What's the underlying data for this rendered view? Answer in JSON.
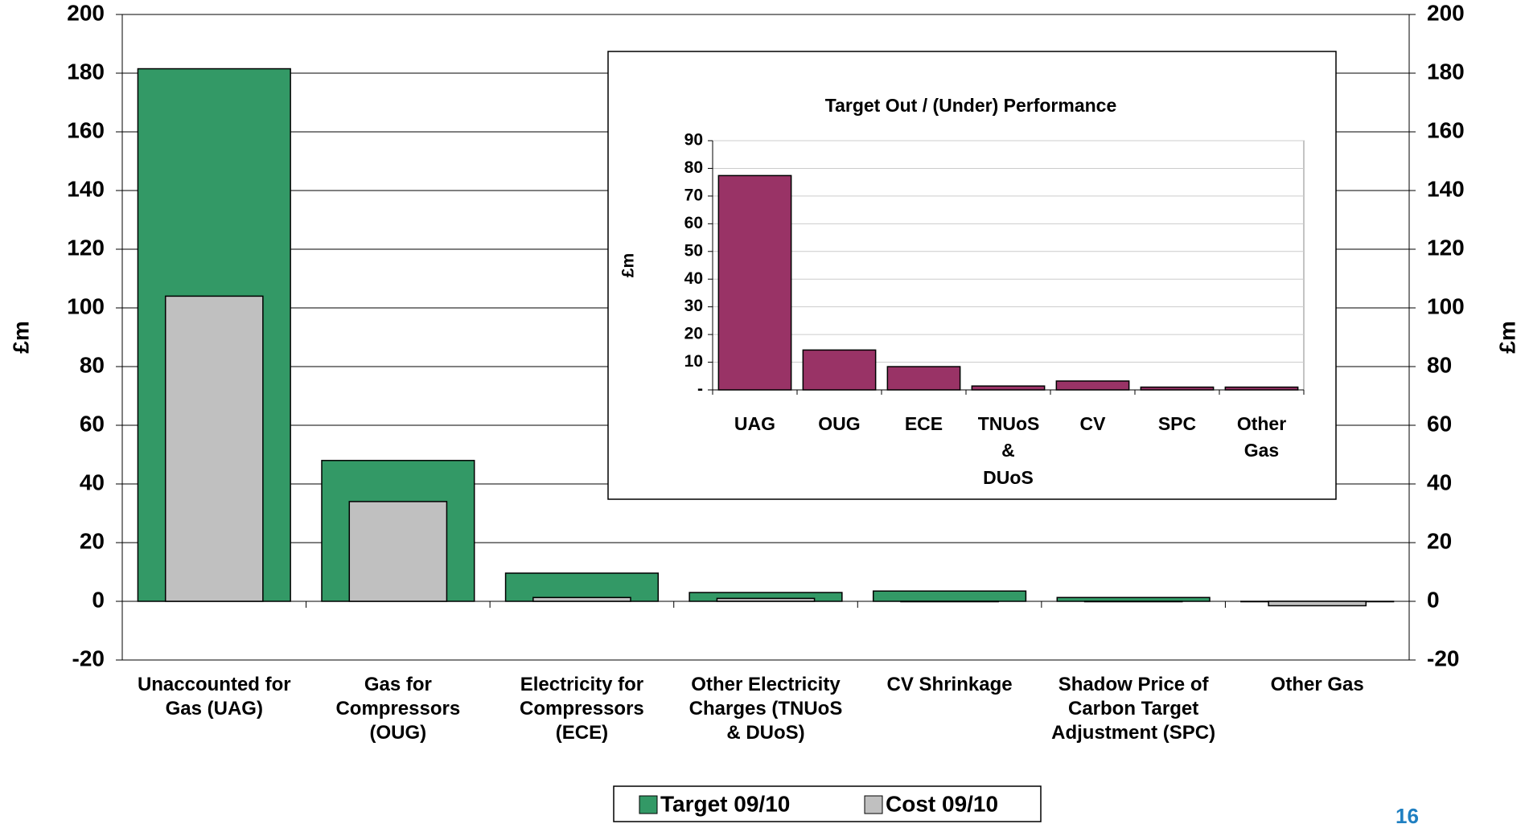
{
  "chart_data": [
    {
      "type": "bar",
      "categories": [
        "Unaccounted for Gas (UAG)",
        "Gas for Compressors (OUG)",
        "Electricity for Compressors (ECE)",
        "Other Electricity Charges (TNUoS & DUoS)",
        "CV Shrinkage",
        "Shadow Price of Carbon Target Adjustment (SPC)",
        "Other Gas"
      ],
      "series": [
        {
          "name": "Target 09/10",
          "color": "#339966",
          "values": [
            181.5,
            48,
            9.6,
            3,
            3.5,
            1.3,
            0
          ]
        },
        {
          "name": "Cost 09/10",
          "color": "#c0c0c0",
          "values": [
            104,
            34,
            1.3,
            1,
            0,
            0,
            -1.5
          ]
        }
      ],
      "y_label": "£m",
      "y2_label": "£m",
      "ylim": [
        -20,
        200
      ],
      "yticks": [
        -20,
        0,
        20,
        40,
        60,
        80,
        100,
        120,
        140,
        160,
        180,
        200
      ],
      "y2lim": [
        -20,
        200
      ],
      "y2ticks": [
        -20,
        0,
        20,
        40,
        60,
        80,
        100,
        120,
        140,
        160,
        180,
        200
      ],
      "grid": true,
      "legend": "bottom"
    },
    {
      "type": "bar",
      "title": "Target Out / (Under) Performance",
      "categories": [
        "UAG",
        "OUG",
        "ECE",
        "TNUoS & DUoS",
        "CV",
        "SPC",
        "Other Gas"
      ],
      "values": [
        77.4,
        14.4,
        8.4,
        1.4,
        3.2,
        1,
        1
      ],
      "color": "#993366",
      "y_label": "£m",
      "ylim": [
        0,
        90
      ],
      "yticks": [
        {
          "value": 0,
          "label": "-"
        },
        10,
        20,
        30,
        40,
        50,
        60,
        70,
        80,
        90
      ],
      "grid": true
    }
  ],
  "page_number": "16"
}
